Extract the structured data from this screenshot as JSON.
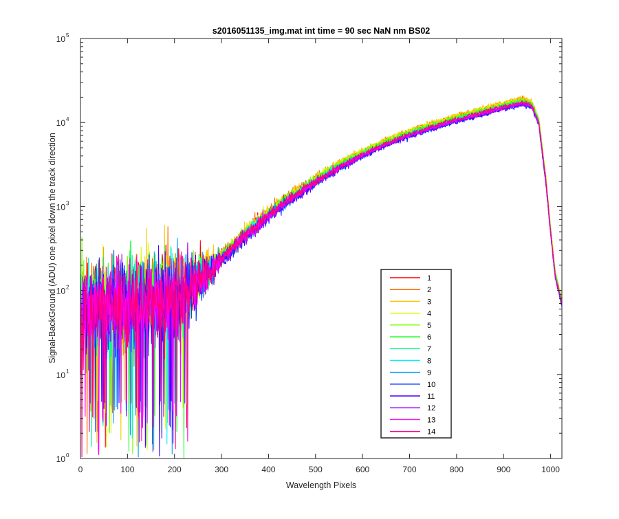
{
  "chart_data": {
    "type": "line",
    "title": "s2016051135_img.mat int time = 90 sec  NaN nm BS02",
    "xlabel": "Wavelength Pixels",
    "ylabel": "Signal-BackGround (ADU) one pixel down the track direction",
    "xlim": [
      0,
      1024
    ],
    "ylim": [
      1,
      100000
    ],
    "yscale": "log",
    "grid": false,
    "x_ticks": [
      0,
      100,
      200,
      300,
      400,
      500,
      600,
      700,
      800,
      900,
      1000
    ],
    "x_tick_labels": [
      "0",
      "100",
      "200",
      "300",
      "400",
      "500",
      "600",
      "700",
      "800",
      "900",
      "1000"
    ],
    "y_ticks": [
      1,
      10,
      100,
      1000,
      10000,
      100000
    ],
    "y_tick_labels": [
      {
        "base": "10",
        "exp": "0"
      },
      {
        "base": "10",
        "exp": "1"
      },
      {
        "base": "10",
        "exp": "2"
      },
      {
        "base": "10",
        "exp": "3"
      },
      {
        "base": "10",
        "exp": "4"
      },
      {
        "base": "10",
        "exp": "5"
      }
    ],
    "legend_position": "lower-right",
    "series_profile": {
      "x": [
        0,
        50,
        100,
        150,
        200,
        250,
        300,
        350,
        400,
        450,
        500,
        550,
        600,
        650,
        700,
        750,
        800,
        850,
        900,
        940,
        960,
        975,
        990,
        1000,
        1010,
        1024
      ],
      "y": [
        60,
        65,
        70,
        75,
        85,
        130,
        240,
        450,
        800,
        1300,
        2000,
        3000,
        4200,
        5700,
        7300,
        9000,
        11000,
        13000,
        15500,
        17500,
        16000,
        10000,
        2000,
        500,
        150,
        70
      ]
    },
    "series": [
      {
        "name": "1",
        "color": "#ff0000",
        "scale": 1.05
      },
      {
        "name": "2",
        "color": "#ff6a00",
        "scale": 1.1
      },
      {
        "name": "3",
        "color": "#ffc800",
        "scale": 1.12
      },
      {
        "name": "4",
        "color": "#d4ff00",
        "scale": 1.08
      },
      {
        "name": "5",
        "color": "#7dff00",
        "scale": 1.06
      },
      {
        "name": "6",
        "color": "#26ff26",
        "scale": 1.04
      },
      {
        "name": "7",
        "color": "#00ff8c",
        "scale": 1.0
      },
      {
        "name": "8",
        "color": "#00f0ff",
        "scale": 0.98
      },
      {
        "name": "9",
        "color": "#0099ff",
        "scale": 0.96
      },
      {
        "name": "10",
        "color": "#0033ff",
        "scale": 0.93
      },
      {
        "name": "11",
        "color": "#4400ff",
        "scale": 0.94
      },
      {
        "name": "12",
        "color": "#a000ff",
        "scale": 0.95
      },
      {
        "name": "13",
        "color": "#ff00ff",
        "scale": 0.97
      },
      {
        "name": "14",
        "color": "#ff0080",
        "scale": 1.0
      }
    ]
  }
}
